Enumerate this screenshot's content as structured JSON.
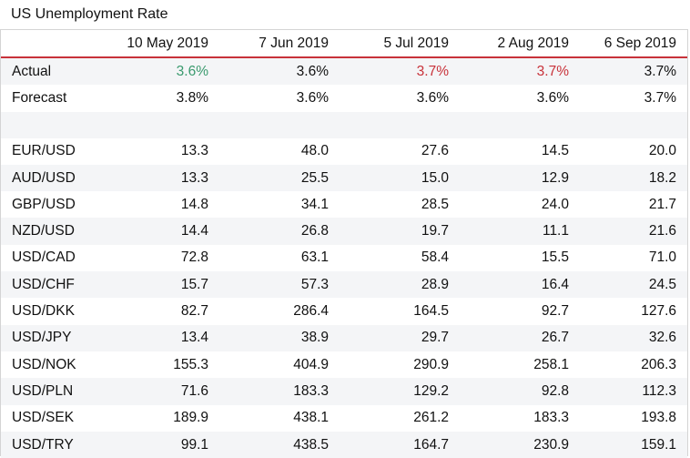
{
  "title": "US Unemployment Rate",
  "colors": {
    "accent_line": "#c8323a",
    "better": "#3a9a6e",
    "worse": "#c8323a"
  },
  "columns": [
    "10 May 2019",
    "7 Jun 2019",
    "5 Jul 2019",
    "2 Aug 2019",
    "6 Sep 2019"
  ],
  "release_rows": [
    {
      "label": "Actual",
      "values": [
        "3.6%",
        "3.6%",
        "3.7%",
        "3.7%",
        "3.7%"
      ],
      "status": [
        "better",
        "neutral",
        "worse",
        "worse",
        "neutral"
      ]
    },
    {
      "label": "Forecast",
      "values": [
        "3.8%",
        "3.6%",
        "3.6%",
        "3.6%",
        "3.7%"
      ]
    }
  ],
  "pair_rows": [
    {
      "label": "EUR/USD",
      "values": [
        "13.3",
        "48.0",
        "27.6",
        "14.5",
        "20.0"
      ]
    },
    {
      "label": "AUD/USD",
      "values": [
        "13.3",
        "25.5",
        "15.0",
        "12.9",
        "18.2"
      ]
    },
    {
      "label": "GBP/USD",
      "values": [
        "14.8",
        "34.1",
        "28.5",
        "24.0",
        "21.7"
      ]
    },
    {
      "label": "NZD/USD",
      "values": [
        "14.4",
        "26.8",
        "19.7",
        "11.1",
        "21.6"
      ]
    },
    {
      "label": "USD/CAD",
      "values": [
        "72.8",
        "63.1",
        "58.4",
        "15.5",
        "71.0"
      ]
    },
    {
      "label": "USD/CHF",
      "values": [
        "15.7",
        "57.3",
        "28.9",
        "16.4",
        "24.5"
      ]
    },
    {
      "label": "USD/DKK",
      "values": [
        "82.7",
        "286.4",
        "164.5",
        "92.7",
        "127.6"
      ]
    },
    {
      "label": "USD/JPY",
      "values": [
        "13.4",
        "38.9",
        "29.7",
        "26.7",
        "32.6"
      ]
    },
    {
      "label": "USD/NOK",
      "values": [
        "155.3",
        "404.9",
        "290.9",
        "258.1",
        "206.3"
      ]
    },
    {
      "label": "USD/PLN",
      "values": [
        "71.6",
        "183.3",
        "129.2",
        "92.8",
        "112.3"
      ]
    },
    {
      "label": "USD/SEK",
      "values": [
        "189.9",
        "438.1",
        "261.2",
        "183.3",
        "193.8"
      ]
    },
    {
      "label": "USD/TRY",
      "values": [
        "99.1",
        "438.5",
        "164.7",
        "230.9",
        "159.1"
      ]
    }
  ]
}
